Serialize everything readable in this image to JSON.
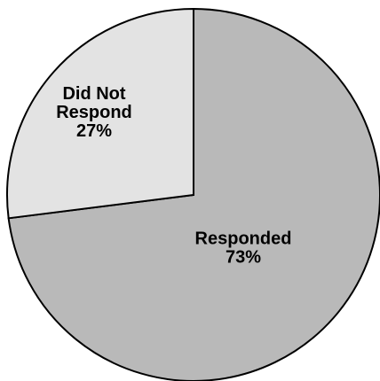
{
  "chart_data": {
    "type": "pie",
    "start_angle_deg": 0,
    "direction": "clockwise",
    "border_color": "#000000",
    "slices": [
      {
        "label_lines": [
          "Responded",
          "73%"
        ],
        "value": 73,
        "color": "#b9b9b9"
      },
      {
        "label_lines": [
          "Did Not",
          "Respond",
          "27%"
        ],
        "value": 27,
        "color": "#e3e3e3"
      }
    ]
  }
}
